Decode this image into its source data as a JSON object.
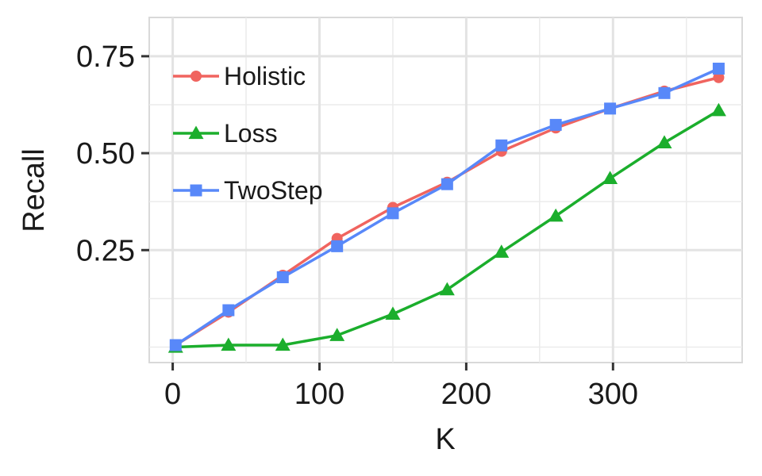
{
  "chart_data": {
    "type": "line",
    "title": "",
    "xlabel": "K",
    "ylabel": "Recall",
    "xlim": [
      -16,
      388
    ],
    "ylim": [
      -0.04,
      0.85
    ],
    "x_ticks": [
      {
        "value": 0,
        "label": "0"
      },
      {
        "value": 100,
        "label": "100"
      },
      {
        "value": 200,
        "label": "200"
      },
      {
        "value": 300,
        "label": "300"
      }
    ],
    "x_minor": [
      50,
      150,
      250,
      350
    ],
    "y_ticks": [
      {
        "value": 0.25,
        "label": "0.25"
      },
      {
        "value": 0.5,
        "label": "0.50"
      },
      {
        "value": 0.75,
        "label": "0.75"
      }
    ],
    "y_minor": [
      0.0,
      0.125,
      0.375,
      0.625
    ],
    "grid": true,
    "legend_position": "top-left",
    "x": [
      2,
      38,
      75,
      112,
      150,
      187,
      224,
      261,
      298,
      335,
      372
    ],
    "series": [
      {
        "name": "Holistic",
        "color": "#F0645F",
        "marker": "circle",
        "values": [
          0.005,
          0.09,
          0.185,
          0.28,
          0.36,
          0.425,
          0.505,
          0.565,
          0.615,
          0.66,
          0.695
        ]
      },
      {
        "name": "Loss",
        "color": "#1BAE2C",
        "marker": "triangle",
        "values": [
          0.0,
          0.005,
          0.005,
          0.03,
          0.085,
          0.148,
          0.245,
          0.338,
          0.435,
          0.527,
          0.61
        ]
      },
      {
        "name": "TwoStep",
        "color": "#5888F9",
        "marker": "square",
        "values": [
          0.005,
          0.095,
          0.18,
          0.26,
          0.345,
          0.42,
          0.52,
          0.573,
          0.615,
          0.655,
          0.718
        ]
      }
    ]
  }
}
